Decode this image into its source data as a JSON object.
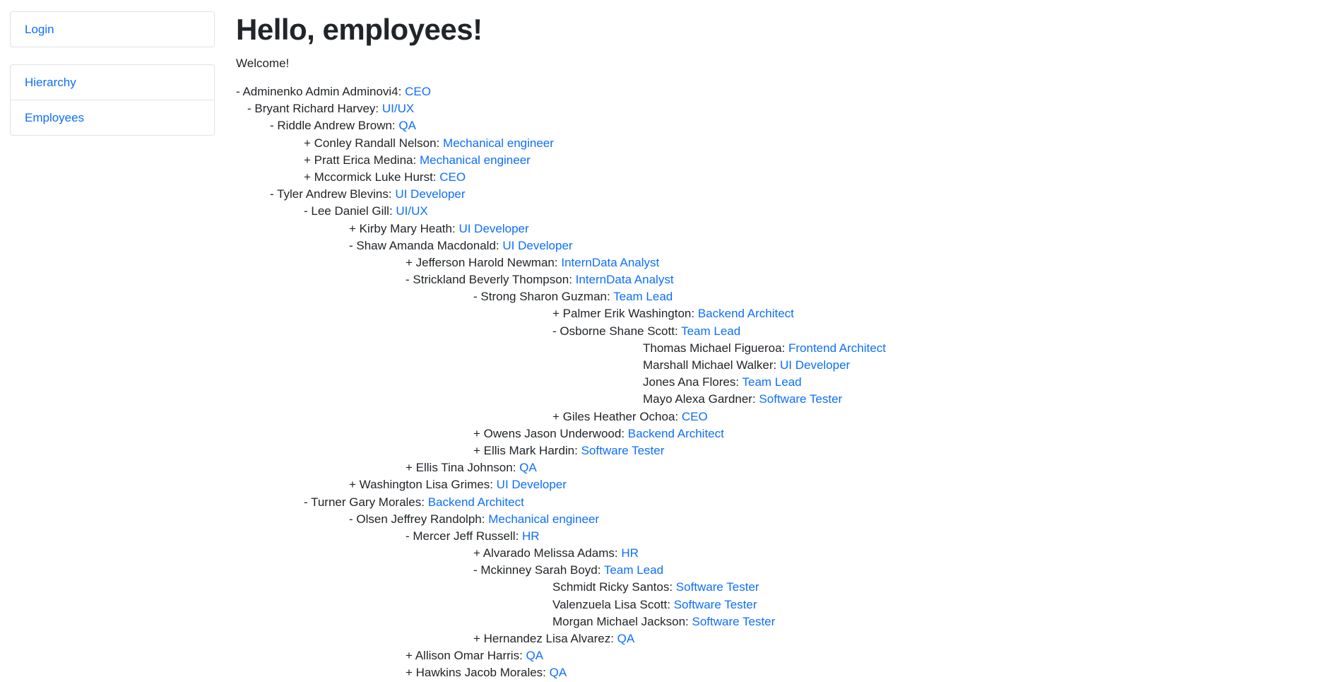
{
  "sidebar": {
    "login": "Login",
    "items": [
      "Hierarchy",
      "Employees"
    ]
  },
  "main": {
    "title": "Hello, employees!",
    "welcome": "Welcome!"
  },
  "tree": [
    {
      "depth": 0,
      "prefix": "- ",
      "name": "Adminenko Admin Adminovi4",
      "role": "CEO"
    },
    {
      "depth": 1,
      "prefix": "- ",
      "name": "Bryant Richard Harvey",
      "role": "UI/UX"
    },
    {
      "depth": 2,
      "prefix": "- ",
      "name": "Riddle Andrew Brown",
      "role": "QA"
    },
    {
      "depth": 3,
      "prefix": "+ ",
      "name": "Conley Randall Nelson",
      "role": "Mechanical engineer"
    },
    {
      "depth": 3,
      "prefix": "+ ",
      "name": "Pratt Erica Medina",
      "role": "Mechanical engineer"
    },
    {
      "depth": 3,
      "prefix": "+ ",
      "name": "Mccormick Luke Hurst",
      "role": "CEO"
    },
    {
      "depth": 2,
      "prefix": "- ",
      "name": "Tyler Andrew Blevins",
      "role": "UI Developer"
    },
    {
      "depth": 3,
      "prefix": "- ",
      "name": "Lee Daniel Gill",
      "role": "UI/UX"
    },
    {
      "depth": 4,
      "prefix": "+ ",
      "name": "Kirby Mary Heath",
      "role": "UI Developer"
    },
    {
      "depth": 4,
      "prefix": "- ",
      "name": "Shaw Amanda Macdonald",
      "role": "UI Developer"
    },
    {
      "depth": 5,
      "prefix": "+ ",
      "name": "Jefferson Harold Newman",
      "role": "InternData Analyst"
    },
    {
      "depth": 5,
      "prefix": "- ",
      "name": "Strickland Beverly Thompson",
      "role": "InternData Analyst"
    },
    {
      "depth": 6,
      "prefix": "- ",
      "name": "Strong Sharon Guzman",
      "role": "Team Lead"
    },
    {
      "depth": 7,
      "prefix": "+ ",
      "name": "Palmer Erik Washington",
      "role": "Backend Architect"
    },
    {
      "depth": 7,
      "prefix": "- ",
      "name": "Osborne Shane Scott",
      "role": "Team Lead"
    },
    {
      "depth": 8,
      "prefix": "",
      "name": "Thomas Michael Figueroa",
      "role": "Frontend Architect"
    },
    {
      "depth": 8,
      "prefix": "",
      "name": "Marshall Michael Walker",
      "role": "UI Developer"
    },
    {
      "depth": 8,
      "prefix": "",
      "name": "Jones Ana Flores",
      "role": "Team Lead"
    },
    {
      "depth": 8,
      "prefix": "",
      "name": "Mayo Alexa Gardner",
      "role": "Software Tester"
    },
    {
      "depth": 7,
      "prefix": "+ ",
      "name": "Giles Heather Ochoa",
      "role": "CEO"
    },
    {
      "depth": 6,
      "prefix": "+ ",
      "name": "Owens Jason Underwood",
      "role": "Backend Architect"
    },
    {
      "depth": 6,
      "prefix": "+ ",
      "name": "Ellis Mark Hardin",
      "role": "Software Tester"
    },
    {
      "depth": 5,
      "prefix": "+ ",
      "name": "Ellis Tina Johnson",
      "role": "QA"
    },
    {
      "depth": 4,
      "prefix": "+ ",
      "name": "Washington Lisa Grimes",
      "role": "UI Developer"
    },
    {
      "depth": 3,
      "prefix": "- ",
      "name": "Turner Gary Morales",
      "role": "Backend Architect"
    },
    {
      "depth": 4,
      "prefix": "- ",
      "name": "Olsen Jeffrey Randolph",
      "role": "Mechanical engineer"
    },
    {
      "depth": 5,
      "prefix": "- ",
      "name": "Mercer Jeff Russell",
      "role": "HR"
    },
    {
      "depth": 6,
      "prefix": "+ ",
      "name": "Alvarado Melissa Adams",
      "role": "HR"
    },
    {
      "depth": 6,
      "prefix": "- ",
      "name": "Mckinney Sarah Boyd",
      "role": "Team Lead"
    },
    {
      "depth": 7,
      "prefix": "",
      "name": "Schmidt Ricky Santos",
      "role": "Software Tester"
    },
    {
      "depth": 7,
      "prefix": "",
      "name": "Valenzuela Lisa Scott",
      "role": "Software Tester"
    },
    {
      "depth": 7,
      "prefix": "",
      "name": "Morgan Michael Jackson",
      "role": "Software Tester"
    },
    {
      "depth": 6,
      "prefix": "+ ",
      "name": "Hernandez Lisa Alvarez",
      "role": "QA"
    },
    {
      "depth": 5,
      "prefix": "+ ",
      "name": "Allison Omar Harris",
      "role": "QA"
    },
    {
      "depth": 5,
      "prefix": "+ ",
      "name": "Hawkins Jacob Morales",
      "role": "QA"
    }
  ],
  "colors": {
    "link": "#0d6efd",
    "text": "#212529",
    "border": "#dfe2e6"
  }
}
